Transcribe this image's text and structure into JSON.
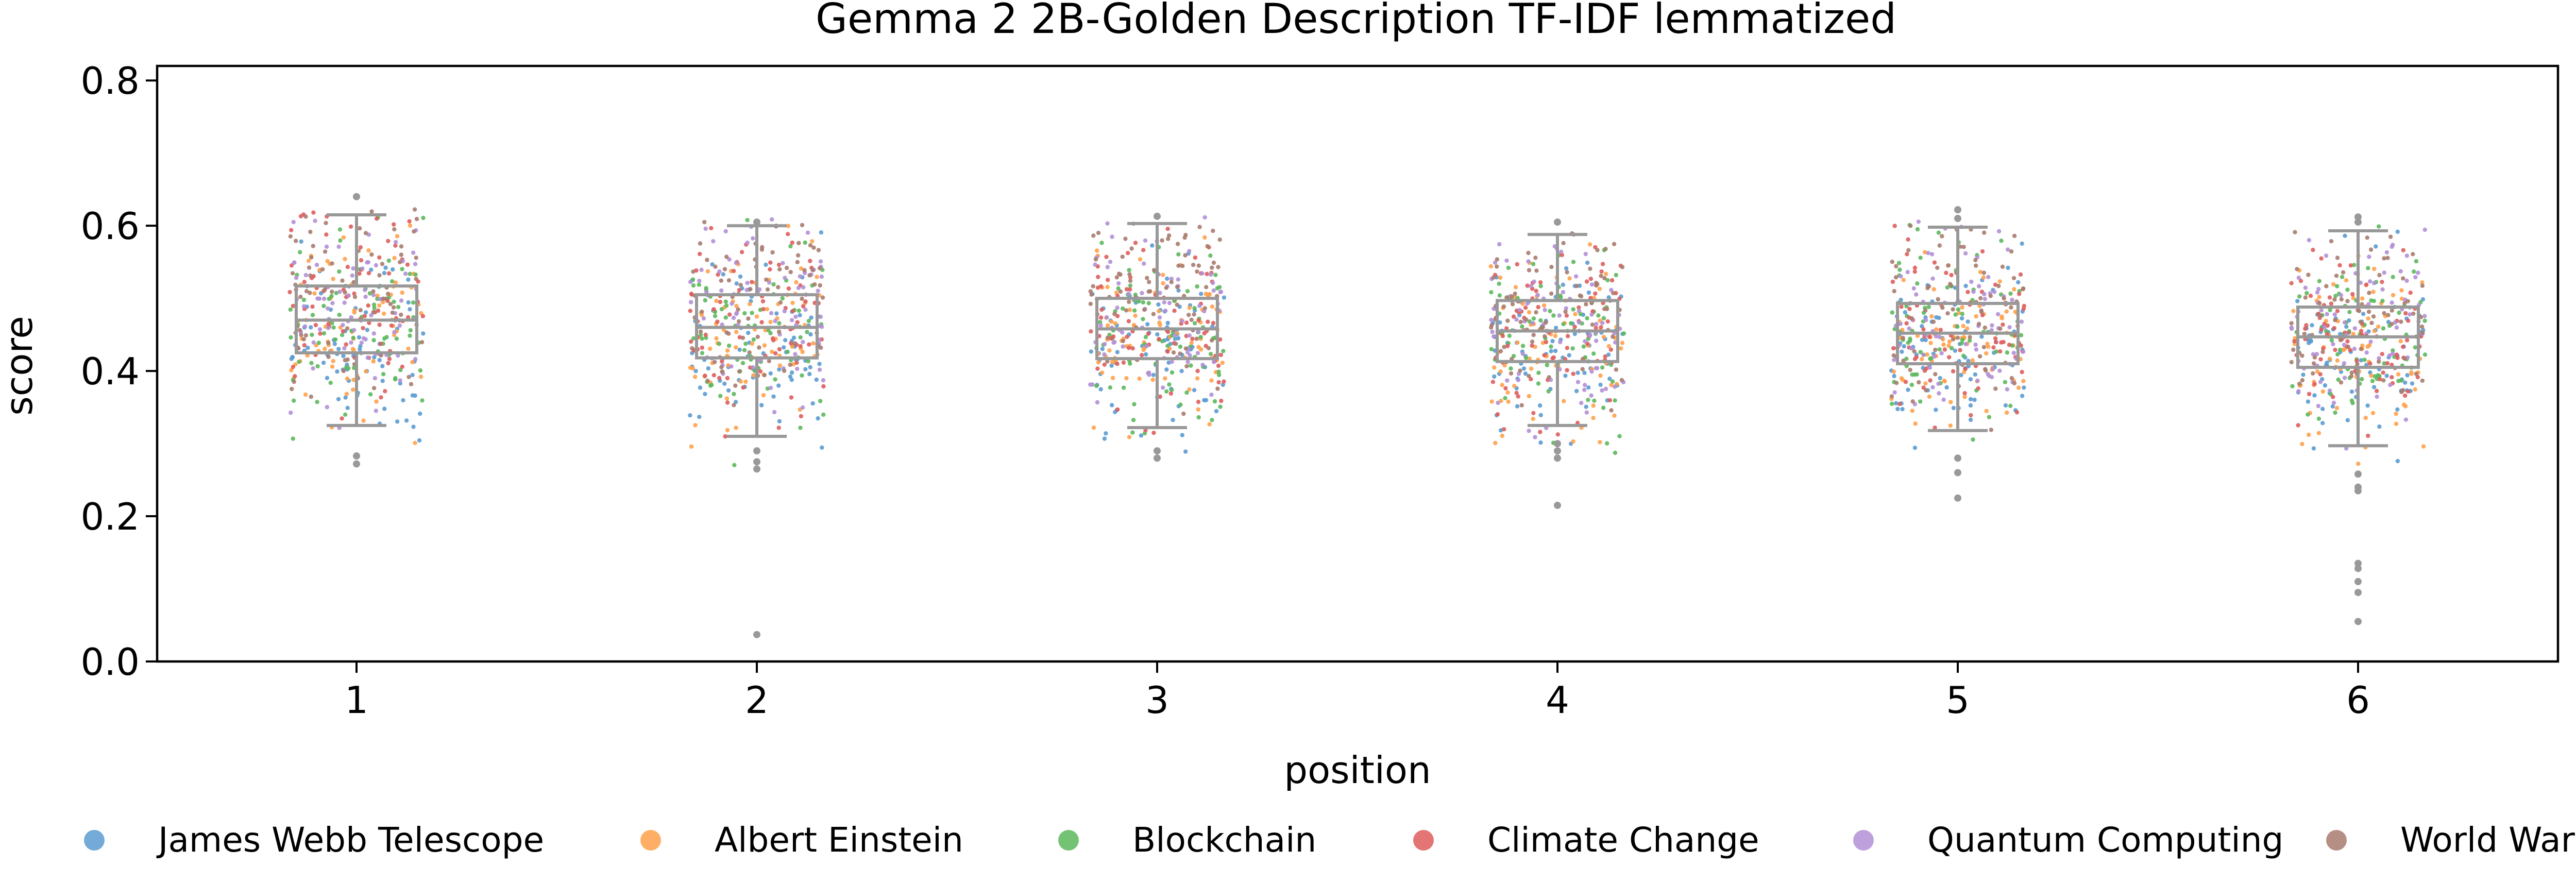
{
  "chart_data": {
    "type": "box-strip",
    "title": "Gemma 2 2B-Golden Description TF-IDF lemmatized",
    "xlabel": "position",
    "ylabel": "score",
    "categories": [
      "1",
      "2",
      "3",
      "4",
      "5",
      "6"
    ],
    "ylim": [
      0.0,
      0.82
    ],
    "yticks": [
      0.0,
      0.2,
      0.4,
      0.6,
      0.8
    ],
    "ytick_labels": [
      "0.0",
      "0.2",
      "0.4",
      "0.6",
      "0.8"
    ],
    "grid": false,
    "legend": {
      "placement": "bottom",
      "entries": [
        {
          "name": "James Webb Telescope",
          "color": "#5b9bd0"
        },
        {
          "name": "Albert Einstein",
          "color": "#ffa14a"
        },
        {
          "name": "Blockchain",
          "color": "#5cb85c"
        },
        {
          "name": "Climate Change",
          "color": "#de5d5d"
        },
        {
          "name": "Quantum Computing",
          "color": "#b28fd6"
        },
        {
          "name": "World War II",
          "color": "#a97b6e"
        }
      ]
    },
    "box_color": "#999999",
    "boxes": [
      {
        "position": "1",
        "whislo": 0.325,
        "q1": 0.425,
        "med": 0.47,
        "q3": 0.517,
        "whishi": 0.615,
        "outliers": [
          0.64,
          0.283,
          0.272
        ]
      },
      {
        "position": "2",
        "whislo": 0.31,
        "q1": 0.418,
        "med": 0.46,
        "q3": 0.505,
        "whishi": 0.6,
        "outliers": [
          0.605,
          0.29,
          0.275,
          0.265,
          0.037
        ]
      },
      {
        "position": "3",
        "whislo": 0.322,
        "q1": 0.417,
        "med": 0.458,
        "q3": 0.5,
        "whishi": 0.603,
        "outliers": [
          0.613,
          0.29,
          0.28
        ]
      },
      {
        "position": "4",
        "whislo": 0.325,
        "q1": 0.413,
        "med": 0.455,
        "q3": 0.497,
        "whishi": 0.588,
        "outliers": [
          0.605,
          0.3,
          0.29,
          0.28,
          0.215
        ]
      },
      {
        "position": "5",
        "whislo": 0.318,
        "q1": 0.41,
        "med": 0.452,
        "q3": 0.493,
        "whishi": 0.598,
        "outliers": [
          0.622,
          0.61,
          0.28,
          0.26,
          0.225
        ]
      },
      {
        "position": "6",
        "whislo": 0.297,
        "q1": 0.405,
        "med": 0.447,
        "q3": 0.488,
        "whishi": 0.593,
        "outliers": [
          0.612,
          0.605,
          0.258,
          0.24,
          0.235,
          0.135,
          0.128,
          0.11,
          0.095,
          0.055
        ]
      }
    ],
    "points_per_series_per_position": 75
  }
}
